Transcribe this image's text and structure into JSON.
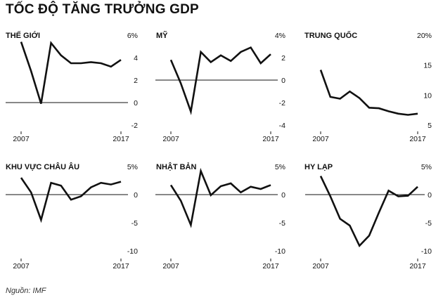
{
  "title": "TỐC ĐỘ TĂNG TRƯỞNG GDP",
  "source": "Nguồn: IMF",
  "colors": {
    "line": "#111111",
    "zero": "#111111",
    "text": "#111111"
  },
  "chart_data": [
    {
      "type": "line",
      "title": "THẾ GIỚI",
      "x": [
        2007,
        2008,
        2009,
        2010,
        2011,
        2012,
        2013,
        2014,
        2015,
        2016,
        2017
      ],
      "values": [
        5.4,
        2.8,
        -0.1,
        5.3,
        4.2,
        3.5,
        3.5,
        3.6,
        3.5,
        3.2,
        3.8
      ],
      "ylim": [
        -2,
        6
      ],
      "yticks": [
        -2,
        0,
        2,
        4,
        6
      ],
      "ytick_labels": [
        "-2",
        "0",
        "2",
        "4",
        "6%"
      ],
      "xtick_labels": [
        "2007",
        "2017"
      ]
    },
    {
      "type": "line",
      "title": "MỸ",
      "x": [
        2007,
        2008,
        2009,
        2010,
        2011,
        2012,
        2013,
        2014,
        2015,
        2016,
        2017
      ],
      "values": [
        1.8,
        -0.3,
        -2.8,
        2.5,
        1.6,
        2.2,
        1.7,
        2.5,
        2.9,
        1.5,
        2.3
      ],
      "ylim": [
        -4,
        4
      ],
      "yticks": [
        -4,
        -2,
        0,
        2,
        4
      ],
      "ytick_labels": [
        "-4",
        "-2",
        "0",
        "2",
        "4%"
      ],
      "xtick_labels": [
        "2007",
        "2017"
      ]
    },
    {
      "type": "line",
      "title": "TRUNG QUỐC",
      "x": [
        2007,
        2008,
        2009,
        2010,
        2011,
        2012,
        2013,
        2014,
        2015,
        2016,
        2017
      ],
      "values": [
        14.2,
        9.7,
        9.4,
        10.6,
        9.5,
        7.9,
        7.8,
        7.3,
        6.9,
        6.7,
        6.9
      ],
      "ylim": [
        5,
        20
      ],
      "yticks": [
        5,
        10,
        15,
        20
      ],
      "ytick_labels": [
        "5",
        "10",
        "15",
        "20%"
      ],
      "xtick_labels": [
        "2007",
        "2017"
      ]
    },
    {
      "type": "line",
      "title": "KHU VỰC CHÂU ÂU",
      "x": [
        2007,
        2008,
        2009,
        2010,
        2011,
        2012,
        2013,
        2014,
        2015,
        2016,
        2017
      ],
      "values": [
        3.0,
        0.4,
        -4.5,
        2.1,
        1.6,
        -0.9,
        -0.3,
        1.3,
        2.1,
        1.8,
        2.3
      ],
      "ylim": [
        -10,
        5
      ],
      "yticks": [
        -10,
        -5,
        0,
        5
      ],
      "ytick_labels": [
        "-10",
        "-5",
        "0",
        "5%"
      ],
      "xtick_labels": [
        "2007",
        "2017"
      ]
    },
    {
      "type": "line",
      "title": "NHẬT BẢN",
      "x": [
        2007,
        2008,
        2009,
        2010,
        2011,
        2012,
        2013,
        2014,
        2015,
        2016,
        2017
      ],
      "values": [
        1.7,
        -1.1,
        -5.4,
        4.2,
        -0.1,
        1.5,
        2.0,
        0.4,
        1.4,
        1.0,
        1.7
      ],
      "ylim": [
        -10,
        5
      ],
      "yticks": [
        -10,
        -5,
        0,
        5
      ],
      "ytick_labels": [
        "-10",
        "-5",
        "0",
        "5%"
      ],
      "xtick_labels": [
        "2007",
        "2017"
      ]
    },
    {
      "type": "line",
      "title": "HY LẠP",
      "x": [
        2007,
        2008,
        2009,
        2010,
        2011,
        2012,
        2013,
        2014,
        2015,
        2016,
        2017
      ],
      "values": [
        3.3,
        -0.3,
        -4.3,
        -5.5,
        -9.1,
        -7.3,
        -3.2,
        0.7,
        -0.3,
        -0.2,
        1.4
      ],
      "ylim": [
        -10,
        5
      ],
      "yticks": [
        -10,
        -5,
        0,
        5
      ],
      "ytick_labels": [
        "-10",
        "-5",
        "0",
        "5%"
      ],
      "xtick_labels": [
        "2007",
        "2017"
      ]
    }
  ]
}
